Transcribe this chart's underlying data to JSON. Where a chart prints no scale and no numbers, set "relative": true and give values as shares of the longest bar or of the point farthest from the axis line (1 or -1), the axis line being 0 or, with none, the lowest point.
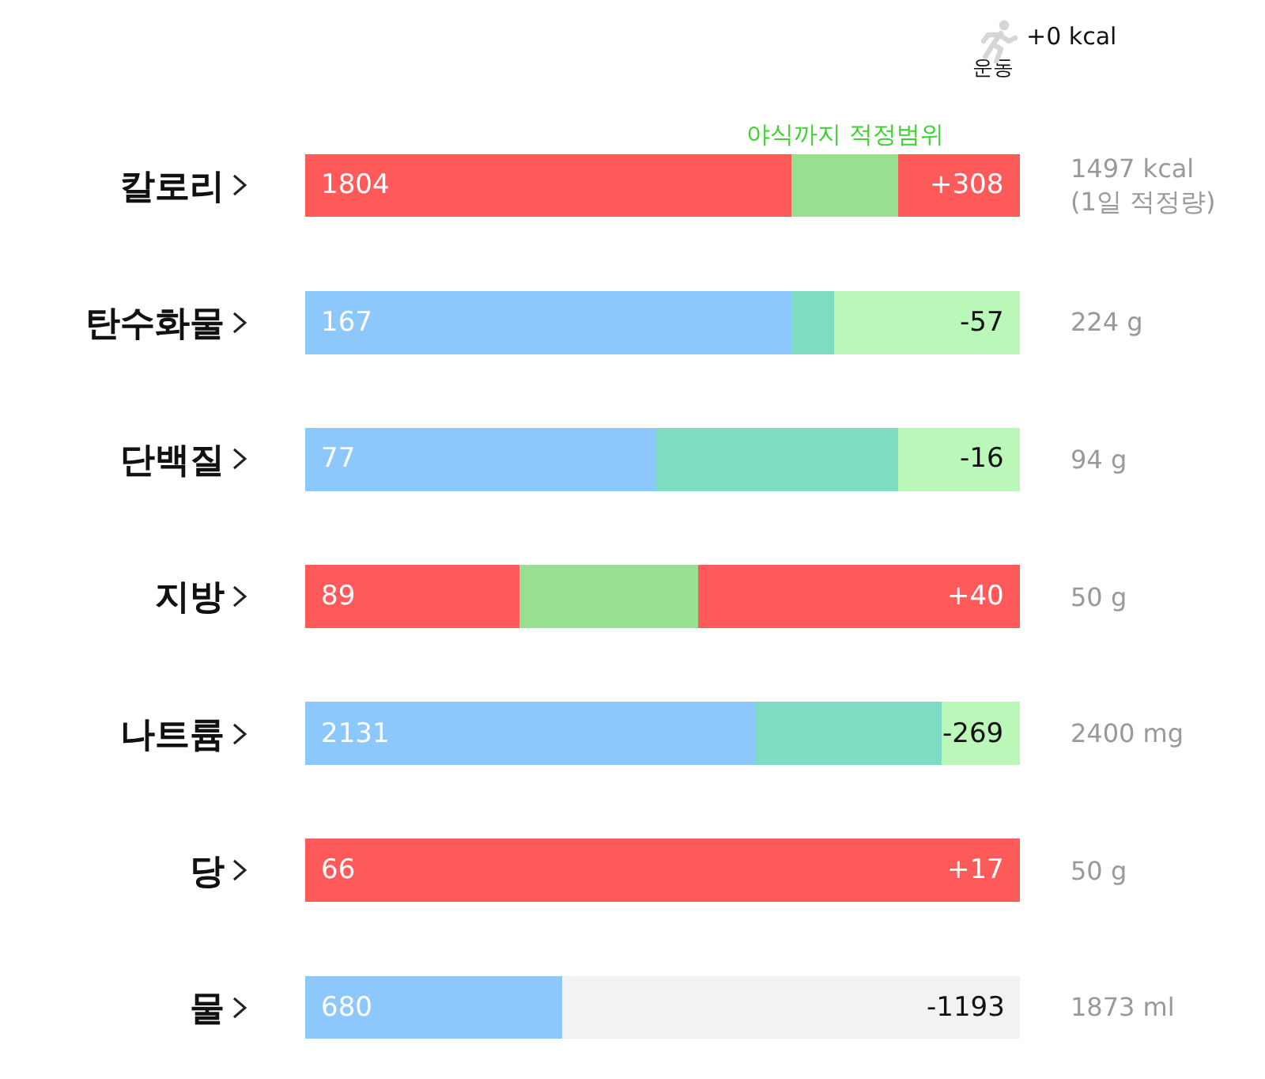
{
  "chart_data": {
    "type": "bar",
    "orientation": "horizontal",
    "stacked": true,
    "relative": true,
    "categories": [
      "칼로리",
      "탄수화물",
      "단백질",
      "지방",
      "나트륨",
      "당",
      "물"
    ],
    "series": [
      {
        "colors": [
          "#ff5a5a",
          "#8cc8fc",
          "#8cc8fc",
          "#ff5a5a",
          "#8cc8fc",
          "#ff5a5a",
          "#8cc8fc"
        ],
        "values": [
          0.68,
          0.68,
          0.49,
          0.3,
          0.63,
          1,
          0.36
        ]
      },
      {
        "colors": [
          "#96e08f",
          "#7edcc2",
          "#7edcc2",
          "#96e08f",
          "#7edcc2",
          null,
          null
        ],
        "values": [
          0.15,
          0.06,
          0.34,
          0.25,
          0.26,
          null,
          null
        ]
      },
      {
        "colors": [
          "#ff5a5a",
          "#baf7b9",
          "#baf7b9",
          "#ff5a5a",
          "#baf7b9",
          "#ff5a5a",
          "#f2f2f2"
        ],
        "values": [
          0.17,
          0.26,
          0.17,
          0.45,
          0.11,
          0,
          0.64
        ]
      }
    ],
    "annotations": [
      "1804",
      "+308",
      "1497 kcal\n(1일 적정량)",
      "167",
      "-57",
      "224 g",
      "77",
      "-16",
      "94 g",
      "89",
      "+40",
      "50 g",
      "2131",
      "-269",
      "2400 mg",
      "66",
      "+17",
      "50 g",
      "680",
      "-1193",
      "1873 ml",
      "야식까지 적정범위",
      "+0 kcal",
      "운동"
    ]
  }
}
